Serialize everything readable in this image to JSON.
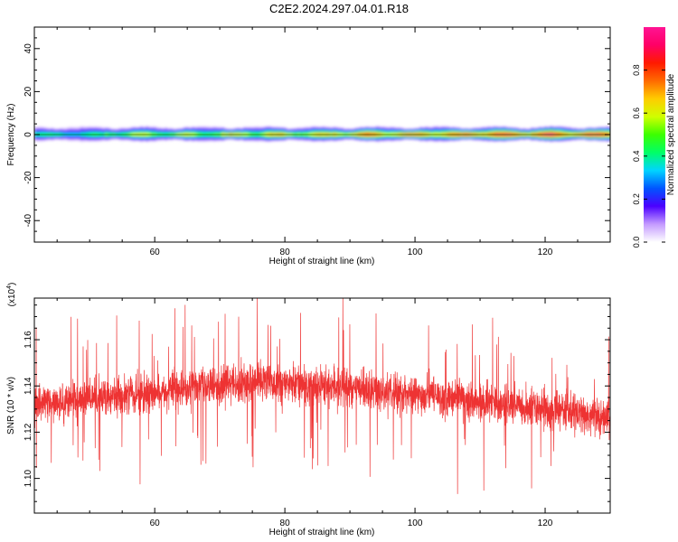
{
  "title": "C2E2.2024.297.04.01.R18",
  "chart_data": [
    {
      "type": "heatmap",
      "xlabel": "Height of straight line (km)",
      "ylabel": "Frequency (Hz)",
      "xlim": [
        41.5,
        130
      ],
      "ylim": [
        -50,
        50
      ],
      "xticks": [
        60,
        80,
        100,
        120
      ],
      "yticks": [
        -40,
        -20,
        0,
        20,
        40
      ],
      "colorbar": {
        "label": "Normalized spectral amplitude",
        "range": [
          0,
          1
        ],
        "ticks": [
          0.0,
          0.2,
          0.4,
          0.6,
          0.8
        ],
        "tick_labels": [
          "0.0",
          "0.2",
          "0.4",
          "0.6",
          "0.8"
        ],
        "colormap": [
          "#ffffff",
          "#c49bff",
          "#4b00ff",
          "#0055ff",
          "#00d4ff",
          "#00ff66",
          "#3cff00",
          "#d0ff00",
          "#ffcc00",
          "#ff6a00",
          "#ff1a00",
          "#ff0066",
          "#ff1493"
        ]
      },
      "band": {
        "freq_center": 0,
        "half_width_hz": 3,
        "segments": [
          {
            "x": [
              41.5,
              52
            ],
            "peak": 0.45
          },
          {
            "x": [
              52,
              70
            ],
            "peak": 0.62
          },
          {
            "x": [
              70,
              87
            ],
            "peak": 0.7
          },
          {
            "x": [
              87,
              107
            ],
            "peak": 0.82
          },
          {
            "x": [
              107,
              130
            ],
            "peak": 0.95
          }
        ]
      },
      "grid": false
    },
    {
      "type": "line",
      "xlabel": "Height of straight line (km)",
      "ylabel": "SNR (10 * v/v)",
      "y_multiplier_label": "(x10",
      "y_multiplier_exp": "4",
      "xlim": [
        41.5,
        130
      ],
      "ylim": [
        1.085,
        1.178
      ],
      "xticks": [
        60,
        80,
        100,
        120
      ],
      "yticks": [
        1.1,
        1.12,
        1.14,
        1.16
      ],
      "ytick_labels": [
        "1.10",
        "1.12",
        "1.14",
        "1.16"
      ],
      "series": [
        {
          "color": "#ee3333",
          "noisy": true,
          "x_range": [
            41.5,
            130
          ],
          "trend": [
            {
              "x": 41.5,
              "y": 1.132
            },
            {
              "x": 60,
              "y": 1.137
            },
            {
              "x": 75,
              "y": 1.142
            },
            {
              "x": 90,
              "y": 1.139
            },
            {
              "x": 105,
              "y": 1.135
            },
            {
              "x": 120,
              "y": 1.13
            },
            {
              "x": 130,
              "y": 1.126
            }
          ],
          "spread": 0.013
        }
      ],
      "grid": false
    }
  ]
}
